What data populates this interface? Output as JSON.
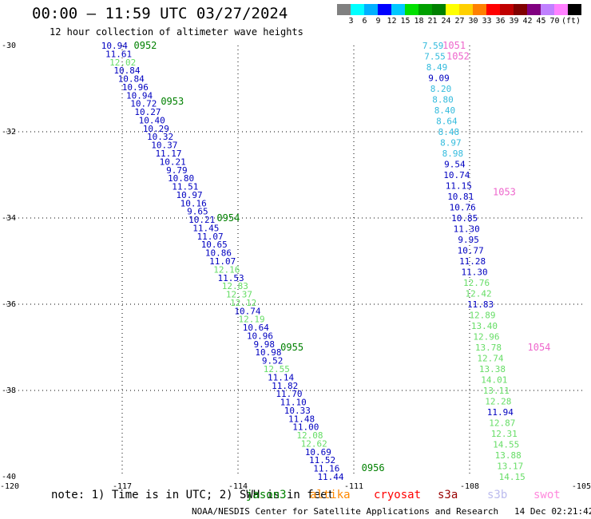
{
  "header": {
    "title": "00:00 — 11:59 UTC 03/27/2024",
    "subtitle": "12 hour collection of altimeter wave heights"
  },
  "colorbar": {
    "swatches": [
      "#808080",
      "#00ffff",
      "#00b0ff",
      "#0000ff",
      "#00c8ff",
      "#00e000",
      "#00a000",
      "#008000",
      "#ffff00",
      "#ffd000",
      "#ff8000",
      "#ff0000",
      "#c00000",
      "#800000",
      "#800080",
      "#c080ff",
      "#ff80ff",
      "#000000"
    ],
    "labels": [
      "3",
      "6",
      "9",
      "12",
      "15",
      "18",
      "21",
      "24",
      "27",
      "30",
      "33",
      "36",
      "39",
      "42",
      "45",
      "70",
      "(ft)"
    ]
  },
  "chart_data": {
    "type": "scatter",
    "xlim": [
      -120,
      -105
    ],
    "ylim": [
      -40,
      -30
    ],
    "x_ticks": [
      "-120",
      "-117",
      "-114",
      "-111",
      "-108",
      "-105"
    ],
    "y_ticks": [
      "-30",
      "-32",
      "-34",
      "-36",
      "-38",
      "-40"
    ],
    "track1": {
      "x_start": -117.2,
      "x_end": -111.6,
      "points": [
        [
          "10.94",
          "#0000c0"
        ],
        [
          "11.61",
          "#0000c0"
        ],
        [
          "12.02",
          "#66dd66"
        ],
        [
          "10.84",
          "#0000c0"
        ],
        [
          "10.84",
          "#0000c0"
        ],
        [
          "10.96",
          "#0000c0"
        ],
        [
          "10.94",
          "#0000c0"
        ],
        [
          "10.72",
          "#0000c0"
        ],
        [
          "10.27",
          "#0000c0"
        ],
        [
          "10.40",
          "#0000c0"
        ],
        [
          "10.29",
          "#0000c0"
        ],
        [
          "10.32",
          "#0000c0"
        ],
        [
          "10.37",
          "#0000c0"
        ],
        [
          "11.17",
          "#0000c0"
        ],
        [
          "10.21",
          "#0000c0"
        ],
        [
          "9.79",
          "#0000c0"
        ],
        [
          "10.80",
          "#0000c0"
        ],
        [
          "11.51",
          "#0000c0"
        ],
        [
          "10.97",
          "#0000c0"
        ],
        [
          "10.16",
          "#0000c0"
        ],
        [
          "9.65",
          "#0000c0"
        ],
        [
          "10.21",
          "#0000c0"
        ],
        [
          "11.45",
          "#0000c0"
        ],
        [
          "11.07",
          "#0000c0"
        ],
        [
          "10.65",
          "#0000c0"
        ],
        [
          "10.86",
          "#0000c0"
        ],
        [
          "11.07",
          "#0000c0"
        ],
        [
          "12.16",
          "#66dd66"
        ],
        [
          "11.53",
          "#0000c0"
        ],
        [
          "12.83",
          "#66dd66"
        ],
        [
          "12.37",
          "#66dd66"
        ],
        [
          "12.12",
          "#66dd66"
        ],
        [
          "10.74",
          "#0000c0"
        ],
        [
          "12.19",
          "#66dd66"
        ],
        [
          "10.64",
          "#0000c0"
        ],
        [
          "10.96",
          "#0000c0"
        ],
        [
          "9.98",
          "#0000c0"
        ],
        [
          "10.98",
          "#0000c0"
        ],
        [
          "9.52",
          "#0000c0"
        ],
        [
          "12.55",
          "#66dd66"
        ],
        [
          "11.14",
          "#0000c0"
        ],
        [
          "11.82",
          "#0000c0"
        ],
        [
          "11.70",
          "#0000c0"
        ],
        [
          "11.10",
          "#0000c0"
        ],
        [
          "10.33",
          "#0000c0"
        ],
        [
          "11.48",
          "#0000c0"
        ],
        [
          "11.00",
          "#0000c0"
        ],
        [
          "12.08",
          "#66dd66"
        ],
        [
          "12.62",
          "#66dd66"
        ],
        [
          "10.69",
          "#0000c0"
        ],
        [
          "11.52",
          "#0000c0"
        ],
        [
          "11.16",
          "#0000c0"
        ],
        [
          "11.44",
          "#0000c0"
        ]
      ]
    },
    "track2": {
      "x_start": -108.95,
      "x_end": -106.9,
      "points": [
        [
          "7.59",
          "#33bbdd"
        ],
        [
          "7.55",
          "#33bbdd"
        ],
        [
          "8.49",
          "#33bbdd"
        ],
        [
          "9.09",
          "#0000c0"
        ],
        [
          "8.20",
          "#33bbdd"
        ],
        [
          "8.80",
          "#33bbdd"
        ],
        [
          "8.40",
          "#33bbdd"
        ],
        [
          "8.64",
          "#33bbdd"
        ],
        [
          "8.48",
          "#33bbdd"
        ],
        [
          "8.97",
          "#33bbdd"
        ],
        [
          "8.98",
          "#33bbdd"
        ],
        [
          "9.54",
          "#0000c0"
        ],
        [
          "10.74",
          "#0000c0"
        ],
        [
          "11.15",
          "#0000c0"
        ],
        [
          "10.81",
          "#0000c0"
        ],
        [
          "10.76",
          "#0000c0"
        ],
        [
          "10.85",
          "#0000c0"
        ],
        [
          "11.30",
          "#0000c0"
        ],
        [
          "9.95",
          "#0000c0"
        ],
        [
          "10.77",
          "#0000c0"
        ],
        [
          "11.28",
          "#0000c0"
        ],
        [
          "11.30",
          "#0000c0"
        ],
        [
          "12.76",
          "#66dd66"
        ],
        [
          "12.42",
          "#66dd66"
        ],
        [
          "11.83",
          "#0000c0"
        ],
        [
          "12.89",
          "#66dd66"
        ],
        [
          "13.40",
          "#66dd66"
        ],
        [
          "12.96",
          "#66dd66"
        ],
        [
          "13.78",
          "#66dd66"
        ],
        [
          "12.74",
          "#66dd66"
        ],
        [
          "13.38",
          "#66dd66"
        ],
        [
          "14.01",
          "#66dd66"
        ],
        [
          "13.11",
          "#66dd66"
        ],
        [
          "12.28",
          "#66dd66"
        ],
        [
          "11.94",
          "#0000c0"
        ],
        [
          "12.87",
          "#66dd66"
        ],
        [
          "12.31",
          "#66dd66"
        ],
        [
          "14.55",
          "#66dd66"
        ],
        [
          "13.88",
          "#66dd66"
        ],
        [
          "13.17",
          "#66dd66"
        ],
        [
          "14.15",
          "#66dd66"
        ]
      ]
    },
    "pass_times": [
      {
        "label": "0952",
        "color": "#008000",
        "lon": -116.7,
        "lat": -30.0
      },
      {
        "label": "0953",
        "color": "#008000",
        "lon": -116.0,
        "lat": -31.3
      },
      {
        "label": "0954",
        "color": "#008000",
        "lon": -114.55,
        "lat": -34.0
      },
      {
        "label": "0955",
        "color": "#008000",
        "lon": -112.9,
        "lat": -37.0
      },
      {
        "label": "0956",
        "color": "#008000",
        "lon": -110.8,
        "lat": -39.8
      },
      {
        "label": "1051",
        "color": "#ee66cc",
        "lon": -108.7,
        "lat": -30.0
      },
      {
        "label": "1052",
        "color": "#ee66cc",
        "lon": -108.6,
        "lat": -30.25
      },
      {
        "label": "1053",
        "color": "#ee66cc",
        "lon": -107.4,
        "lat": -33.4
      },
      {
        "label": "1054",
        "color": "#ee66cc",
        "lon": -106.5,
        "lat": -37.0
      }
    ]
  },
  "footer": {
    "note": "note: 1) Time is in UTC; 2) SWH is in feet",
    "credit": "NOAA/NESDIS Center for Satellite Applications and Research   14 Dec 02:21:42 UTC 2024",
    "satellites": [
      {
        "name": "jason3",
        "color": "#008000"
      },
      {
        "name": "altika",
        "color": "#ff8800"
      },
      {
        "name": "cryosat",
        "color": "#ff0000"
      },
      {
        "name": "s3a",
        "color": "#990000"
      },
      {
        "name": "s3b",
        "color": "#bbbbee"
      },
      {
        "name": "swot",
        "color": "#ff88dd"
      }
    ]
  }
}
